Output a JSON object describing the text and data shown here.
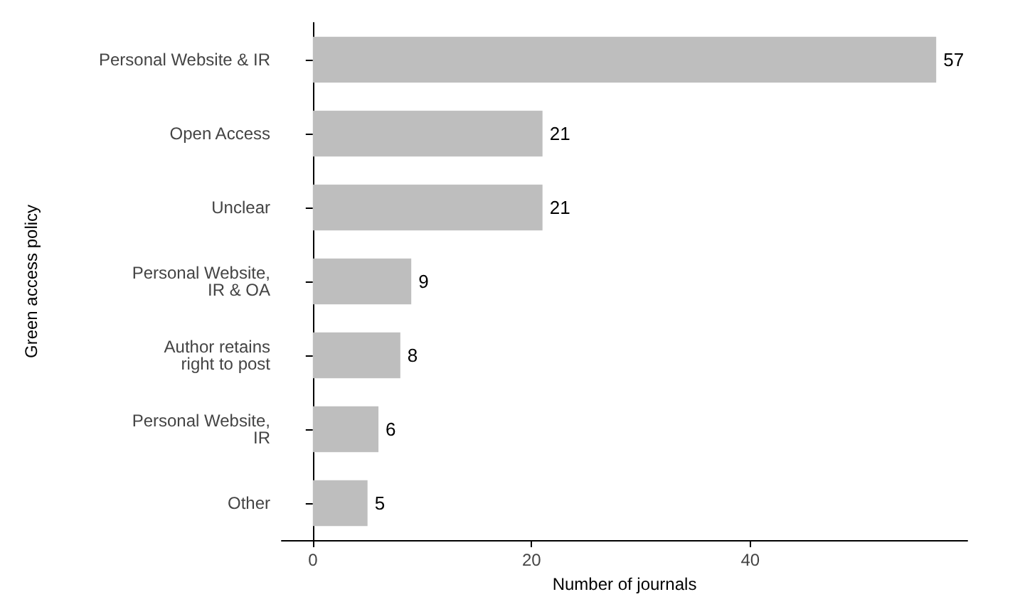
{
  "chart_data": {
    "type": "bar",
    "orientation": "horizontal",
    "xlabel": "Number of journals",
    "ylabel": "Green access policy",
    "categories": [
      "Personal Website & IR",
      "Open Access",
      "Unclear",
      "Personal Website,\nIR & OA",
      "Author retains\nright to post",
      "Personal Website,\nIR",
      "Other"
    ],
    "values": [
      57,
      21,
      21,
      9,
      8,
      6,
      5
    ],
    "color": "#bebebe",
    "xlim": [
      -2.85,
      59.85
    ],
    "xticks": [
      0,
      20,
      40
    ],
    "grid": false,
    "data_labels": true
  }
}
